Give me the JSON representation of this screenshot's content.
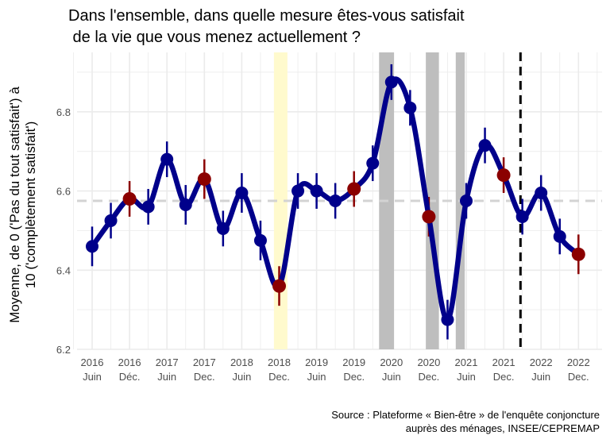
{
  "chart_data": {
    "type": "line",
    "title": "Dans l'ensemble, dans quelle mesure êtes-vous satisfait",
    "title_line2": " de la vie que vous menez actuellement ?",
    "ylabel_line1": "Moyenne, de 0 ('Pas du tout satisfait') à",
    "ylabel_line2": "10 ('complètement satisfait')",
    "caption_line1": "Source : Plateforme « Bien-être » de l'enquête conjoncture",
    "caption_line2": "auprès des ménages, INSEE/CEPREMAP",
    "ylim": [
      6.2,
      6.95
    ],
    "y_ticks": [
      6.2,
      6.4,
      6.6,
      6.8
    ],
    "y_tick_labels": [
      "6.2",
      "6.4",
      "6.6",
      "6.8"
    ],
    "x_tick_labels": [
      {
        "l1": "2016",
        "l2": "Juin"
      },
      {
        "l1": "2016",
        "l2": "Déc."
      },
      {
        "l1": "2017",
        "l2": "Juin"
      },
      {
        "l1": "2017",
        "l2": "Dec."
      },
      {
        "l1": "2018",
        "l2": "Juin"
      },
      {
        "l1": "2018",
        "l2": "Dec."
      },
      {
        "l1": "2019",
        "l2": "Juin"
      },
      {
        "l1": "2019",
        "l2": "Dec."
      },
      {
        "l1": "2020",
        "l2": "Juin"
      },
      {
        "l1": "2020",
        "l2": "Dec."
      },
      {
        "l1": "2021",
        "l2": "Juin"
      },
      {
        "l1": "2021",
        "l2": "Dec."
      },
      {
        "l1": "2022",
        "l2": "Juin"
      },
      {
        "l1": "2022",
        "l2": "Dec."
      }
    ],
    "x_tick_positions": [
      0,
      1,
      2,
      3,
      4,
      5,
      6,
      7,
      8,
      9,
      10,
      11,
      12,
      13
    ],
    "x_range": [
      -0.25,
      13.4
    ],
    "points": [
      {
        "x": 0.0,
        "y": 6.46,
        "err": 0.05,
        "highlight": false
      },
      {
        "x": 0.5,
        "y": 6.525,
        "err": 0.045,
        "highlight": false
      },
      {
        "x": 1.0,
        "y": 6.58,
        "err": 0.045,
        "highlight": true
      },
      {
        "x": 1.5,
        "y": 6.56,
        "err": 0.045,
        "highlight": false
      },
      {
        "x": 2.0,
        "y": 6.68,
        "err": 0.045,
        "highlight": false
      },
      {
        "x": 2.5,
        "y": 6.565,
        "err": 0.05,
        "highlight": false
      },
      {
        "x": 3.0,
        "y": 6.63,
        "err": 0.05,
        "highlight": true
      },
      {
        "x": 3.5,
        "y": 6.505,
        "err": 0.045,
        "highlight": false
      },
      {
        "x": 4.0,
        "y": 6.595,
        "err": 0.05,
        "highlight": false
      },
      {
        "x": 4.5,
        "y": 6.475,
        "err": 0.05,
        "highlight": false
      },
      {
        "x": 5.0,
        "y": 6.36,
        "err": 0.05,
        "highlight": true
      },
      {
        "x": 5.5,
        "y": 6.6,
        "err": 0.045,
        "highlight": false
      },
      {
        "x": 6.0,
        "y": 6.6,
        "err": 0.045,
        "highlight": false
      },
      {
        "x": 6.5,
        "y": 6.575,
        "err": 0.045,
        "highlight": false
      },
      {
        "x": 7.0,
        "y": 6.605,
        "err": 0.045,
        "highlight": true
      },
      {
        "x": 7.5,
        "y": 6.67,
        "err": 0.045,
        "highlight": false
      },
      {
        "x": 8.0,
        "y": 6.875,
        "err": 0.045,
        "highlight": false
      },
      {
        "x": 8.5,
        "y": 6.81,
        "err": 0.045,
        "highlight": false
      },
      {
        "x": 9.0,
        "y": 6.535,
        "err": 0.05,
        "highlight": true
      },
      {
        "x": 9.5,
        "y": 6.275,
        "err": 0.05,
        "highlight": false
      },
      {
        "x": 10.0,
        "y": 6.575,
        "err": 0.045,
        "highlight": false
      },
      {
        "x": 10.5,
        "y": 6.715,
        "err": 0.045,
        "highlight": false
      },
      {
        "x": 11.0,
        "y": 6.64,
        "err": 0.045,
        "highlight": true
      },
      {
        "x": 11.5,
        "y": 6.535,
        "err": 0.045,
        "highlight": false
      },
      {
        "x": 12.0,
        "y": 6.595,
        "err": 0.045,
        "highlight": false
      },
      {
        "x": 12.5,
        "y": 6.485,
        "err": 0.045,
        "highlight": false
      },
      {
        "x": 13.0,
        "y": 6.44,
        "err": 0.05,
        "highlight": true
      }
    ],
    "mean_line": 6.575,
    "shaded_bands": [
      {
        "x0": 4.86,
        "x1": 5.22,
        "color": "#FFFACD"
      },
      {
        "x0": 7.67,
        "x1": 8.07,
        "color": "#BEBEBE"
      },
      {
        "x0": 8.92,
        "x1": 9.27,
        "color": "#BEBEBE"
      },
      {
        "x0": 9.72,
        "x1": 9.96,
        "color": "#BEBEBE"
      }
    ],
    "vertical_dashed_line": 11.45,
    "colors": {
      "line": "#00008B",
      "point": "#00008B",
      "highlight_point": "#8B0000",
      "mean_line": "#D3D3D3",
      "dashed_line": "#000000",
      "grid": "#EBEBEB"
    },
    "grid": true,
    "legend": "none"
  }
}
